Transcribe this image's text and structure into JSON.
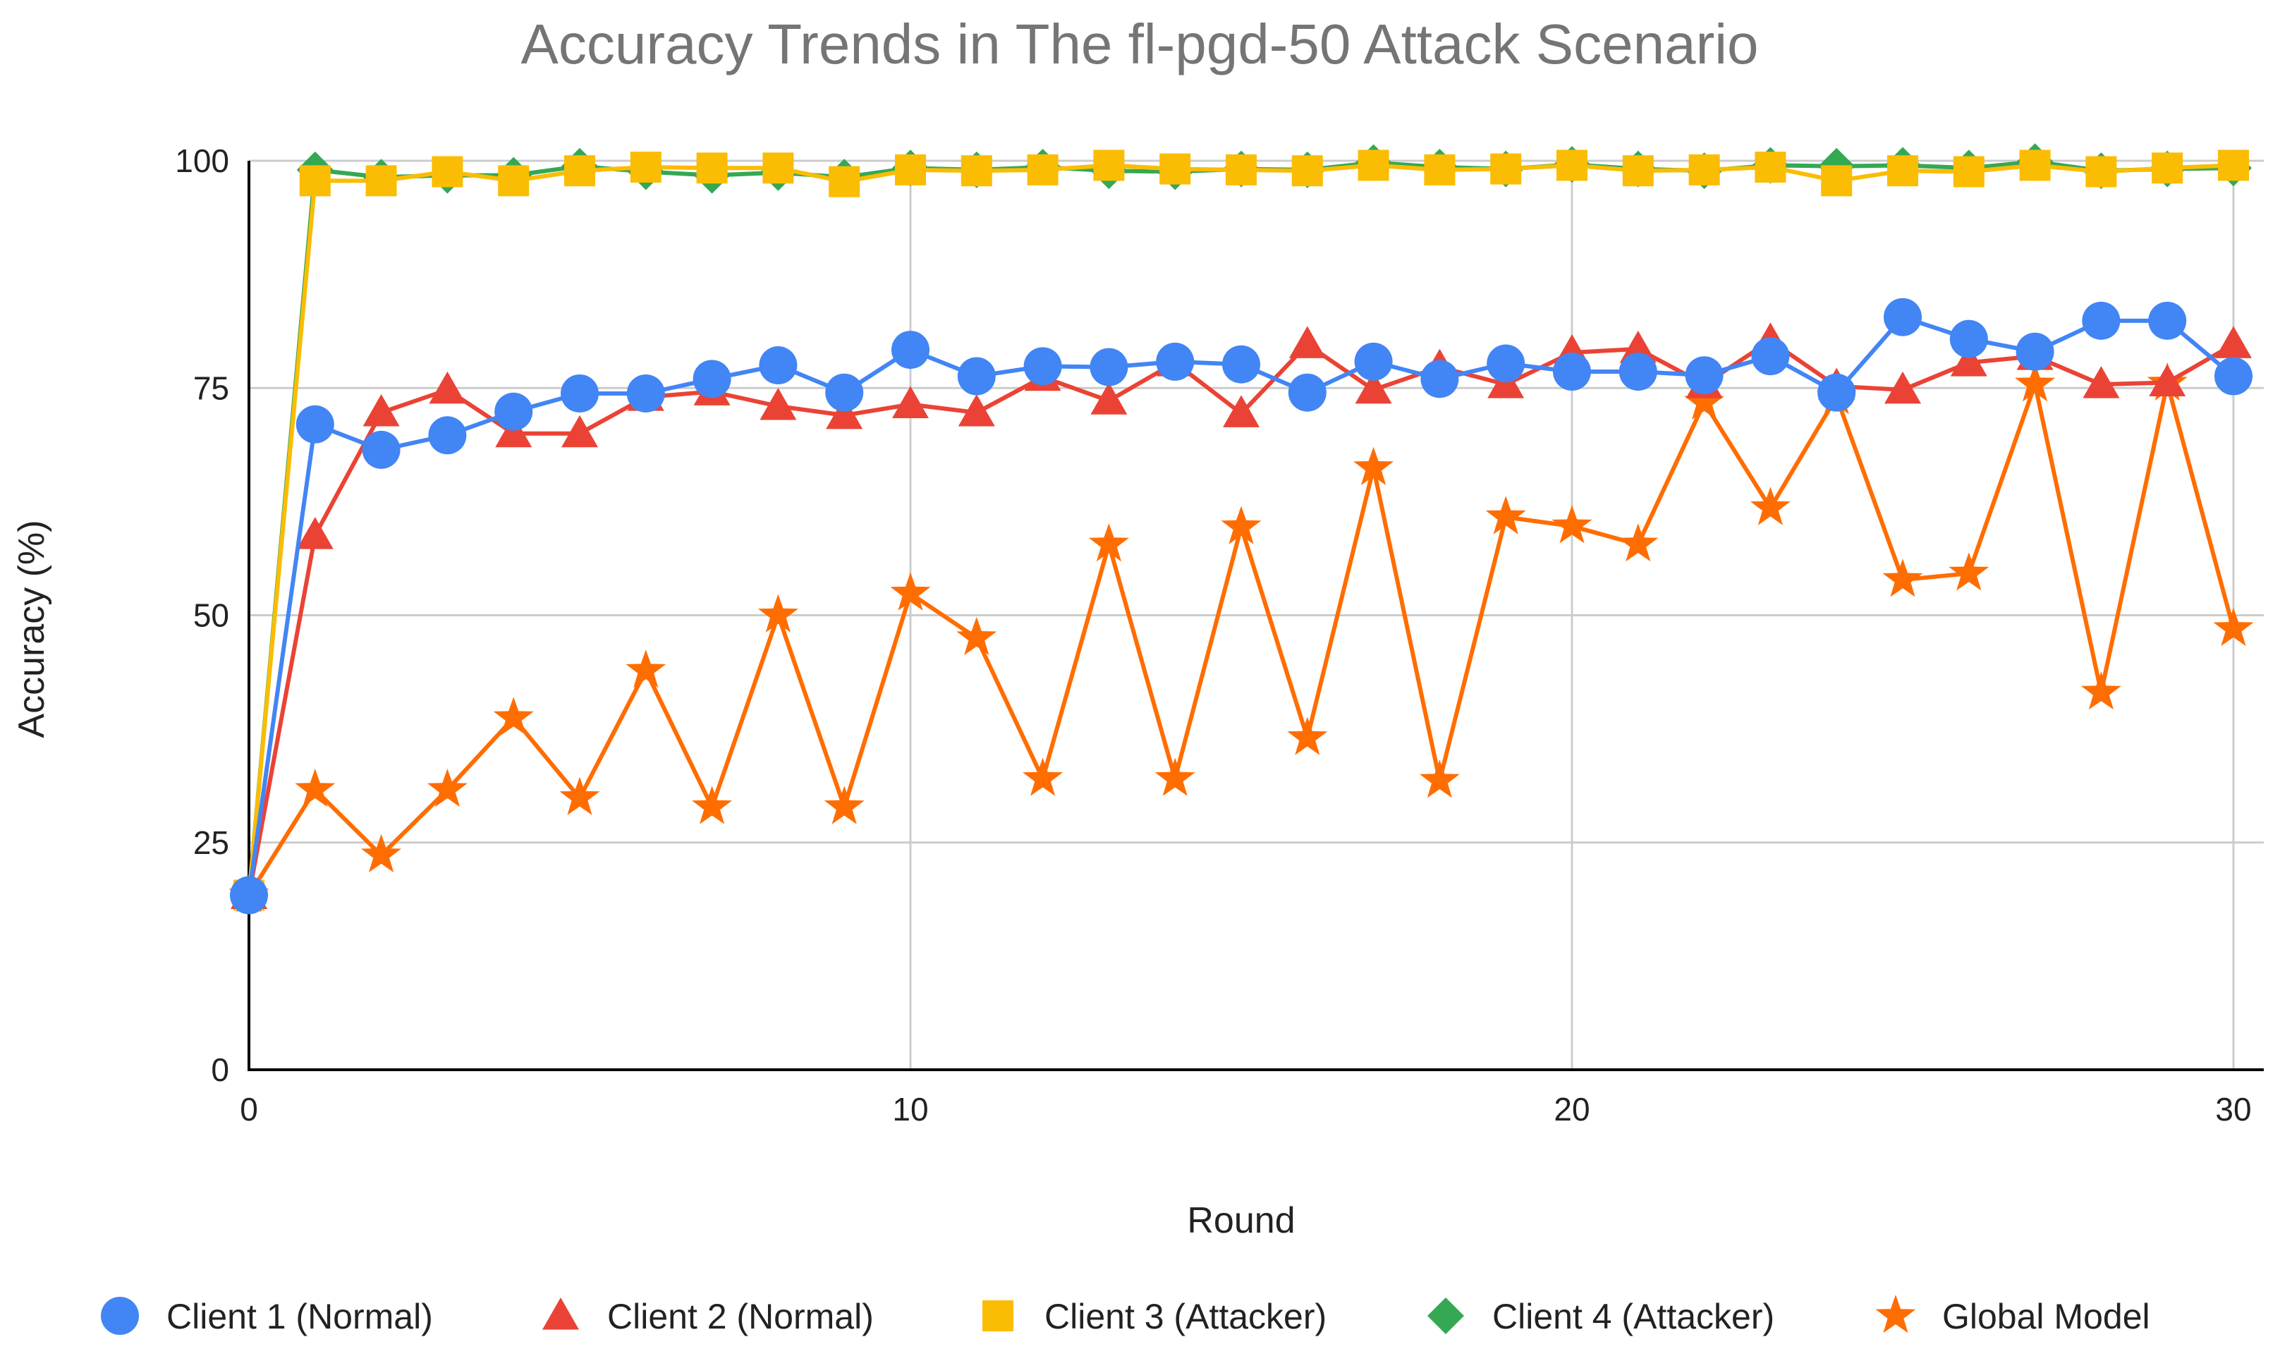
{
  "chart_data": {
    "type": "line",
    "title": "Accuracy Trends in The fl-pgd-50 Attack Scenario",
    "xlabel": "Round",
    "ylabel": "Accuracy (%)",
    "xlim": [
      0,
      30
    ],
    "ylim": [
      0,
      100
    ],
    "xticks": [
      0,
      10,
      20,
      30
    ],
    "yticks": [
      0,
      25,
      50,
      75,
      100
    ],
    "grid": true,
    "legend_position": "bottom",
    "x": [
      0,
      1,
      2,
      3,
      4,
      5,
      6,
      7,
      8,
      9,
      10,
      11,
      12,
      13,
      14,
      15,
      16,
      17,
      18,
      19,
      20,
      21,
      22,
      23,
      24,
      25,
      26,
      27,
      28,
      29,
      30
    ],
    "series": [
      {
        "name": "Client 1 (Normal)",
        "color": "#4285f4",
        "marker": "circle",
        "values": [
          19.2,
          71.0,
          68.2,
          69.8,
          72.4,
          74.4,
          74.4,
          76.0,
          77.5,
          74.5,
          79.2,
          76.3,
          77.4,
          77.3,
          77.9,
          77.6,
          74.5,
          77.9,
          76.0,
          77.7,
          76.8,
          76.8,
          76.4,
          78.5,
          74.5,
          82.8,
          80.4,
          79.0,
          82.4,
          82.4,
          76.3
        ]
      },
      {
        "name": "Client 2 (Normal)",
        "color": "#ea4335",
        "marker": "triangle",
        "values": [
          19.2,
          58.8,
          72.3,
          74.8,
          70.0,
          70.0,
          74.0,
          74.6,
          73.0,
          72.0,
          73.2,
          72.3,
          76.2,
          73.6,
          77.8,
          72.2,
          79.8,
          74.8,
          77.3,
          75.4,
          78.9,
          79.3,
          75.4,
          80.2,
          75.2,
          74.8,
          77.8,
          78.5,
          75.4,
          75.6,
          79.8
        ]
      },
      {
        "name": "Client 3 (Attacker)",
        "color": "#fbbc04",
        "marker": "square",
        "values": [
          19.2,
          97.8,
          97.8,
          98.8,
          97.8,
          98.9,
          99.3,
          99.2,
          99.2,
          97.7,
          99.0,
          98.9,
          99.0,
          99.5,
          99.1,
          99.0,
          98.9,
          99.5,
          99.0,
          99.1,
          99.5,
          98.9,
          99.0,
          99.3,
          97.8,
          98.9,
          98.8,
          99.5,
          98.8,
          99.2,
          99.5
        ]
      },
      {
        "name": "Client 4 (Attacker)",
        "color": "#34a853",
        "marker": "diamond",
        "values": [
          19.2,
          99.0,
          98.2,
          98.4,
          98.4,
          99.4,
          98.8,
          98.4,
          98.7,
          98.2,
          99.2,
          99.0,
          99.3,
          98.9,
          98.8,
          99.1,
          99.0,
          99.8,
          99.3,
          99.1,
          99.6,
          99.1,
          98.9,
          99.5,
          99.4,
          99.5,
          99.2,
          99.9,
          98.9,
          99.1,
          99.2
        ]
      },
      {
        "name": "Global Model",
        "color": "#ff6d01",
        "marker": "star",
        "values": [
          19.2,
          30.8,
          23.6,
          30.8,
          38.7,
          29.9,
          43.9,
          28.9,
          50.0,
          28.9,
          52.4,
          47.5,
          32.0,
          57.8,
          32.0,
          59.7,
          36.5,
          66.2,
          31.8,
          60.8,
          59.8,
          57.8,
          73.4,
          61.8,
          74.0,
          53.9,
          54.6,
          75.4,
          41.5,
          75.5,
          48.5
        ]
      }
    ]
  }
}
